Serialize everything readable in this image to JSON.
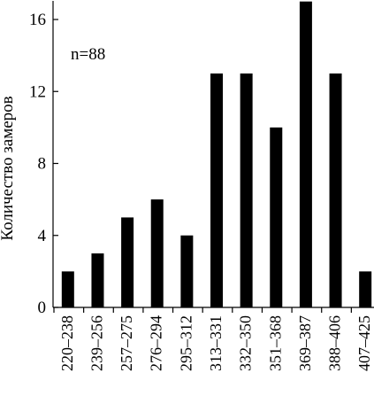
{
  "chart_data": {
    "type": "bar",
    "categories": [
      "220–238",
      "239–256",
      "257–275",
      "276–294",
      "295–312",
      "313–331",
      "332–350",
      "351–368",
      "369–387",
      "388–406",
      "407–425"
    ],
    "values": [
      2,
      3,
      5,
      6,
      4,
      13,
      13,
      10,
      17,
      13,
      2
    ],
    "ylabel": "Количество замеров",
    "xlabel": "",
    "ylim": [
      0,
      17
    ],
    "yticks": [
      0,
      4,
      8,
      12,
      16
    ],
    "annotation": "n=88",
    "grid": false,
    "bar_color": "#000000"
  }
}
